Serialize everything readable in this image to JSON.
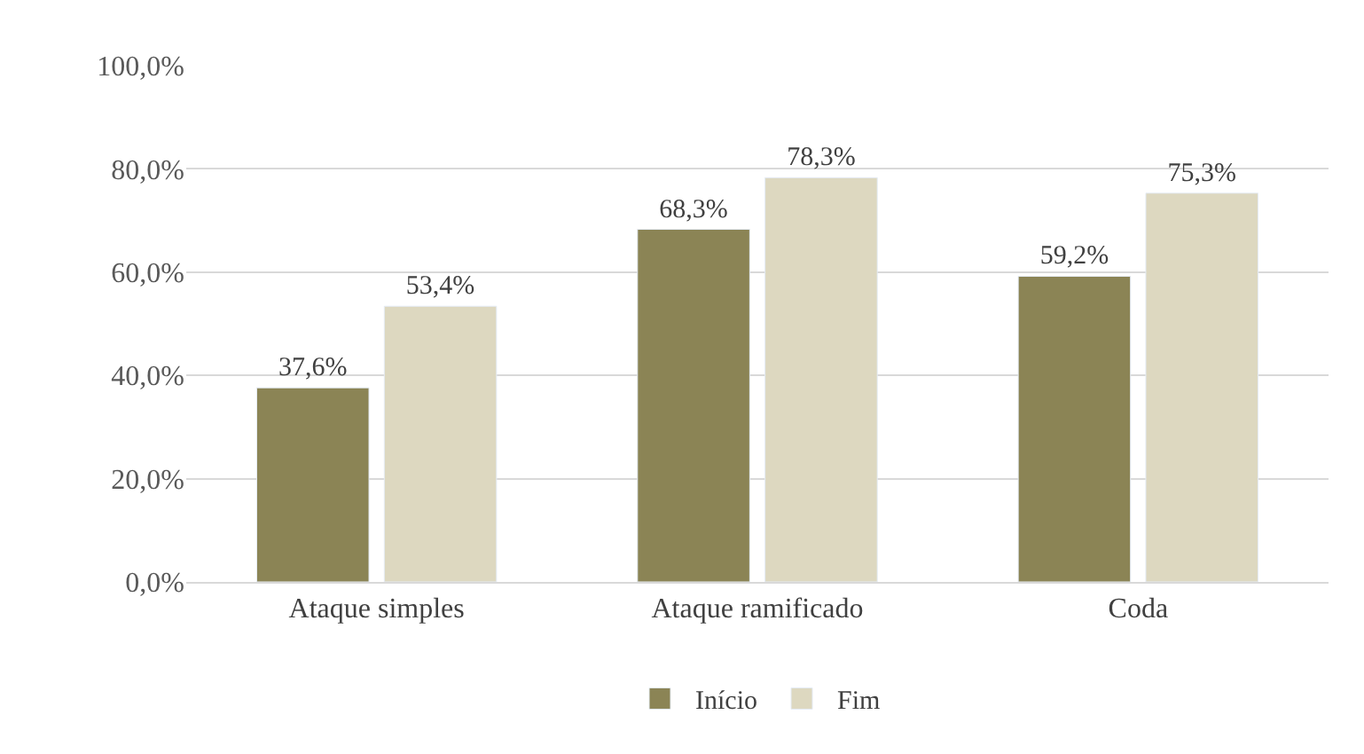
{
  "chart_data": {
    "type": "bar",
    "categories": [
      "Ataque simples",
      "Ataque ramificado",
      "Coda"
    ],
    "series": [
      {
        "name": "Início",
        "color": "#8b8455",
        "values": [
          37.6,
          68.3,
          59.2
        ],
        "value_labels": [
          "37,6%",
          "68,3%",
          "59,2%"
        ]
      },
      {
        "name": "Fim",
        "color": "#ddd8c0",
        "values": [
          53.4,
          78.3,
          75.3
        ],
        "value_labels": [
          "53,4%",
          "78,3%",
          "75,3%"
        ]
      }
    ],
    "ylim": [
      0,
      100
    ],
    "yticks": [
      {
        "value": 0,
        "label": "0,0%"
      },
      {
        "value": 20,
        "label": "20,0%"
      },
      {
        "value": 40,
        "label": "40,0%"
      },
      {
        "value": 60,
        "label": "60,0%"
      },
      {
        "value": 80,
        "label": "80,0%"
      },
      {
        "value": 100,
        "label": "100,0%"
      }
    ],
    "grid": "y",
    "legend": "bottom"
  }
}
